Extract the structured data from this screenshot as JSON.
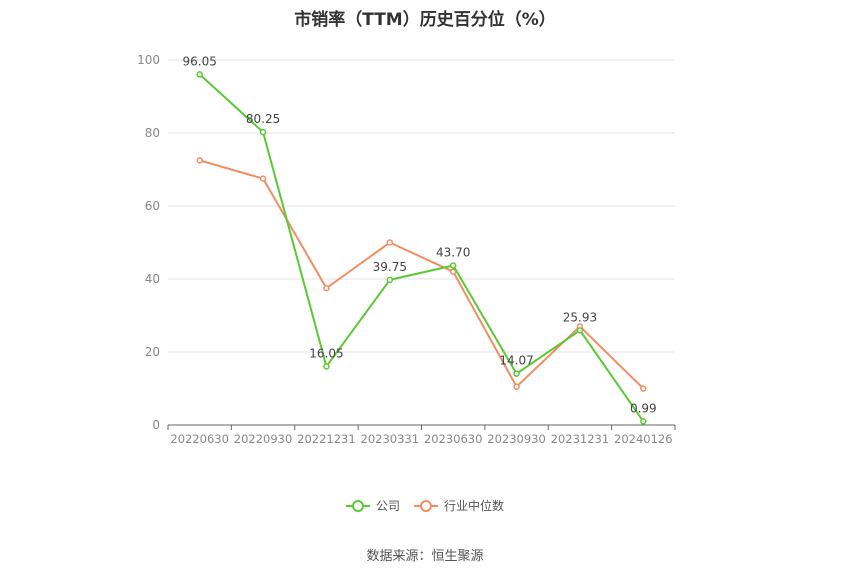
{
  "chart_data": {
    "type": "line",
    "title": "市销率（TTM）历史百分位（%）",
    "categories": [
      "20220630",
      "20220930",
      "20221231",
      "20230331",
      "20230630",
      "20230930",
      "20231231",
      "20240126"
    ],
    "ylim": [
      0,
      100
    ],
    "yticks": [
      "0",
      "20",
      "40",
      "60",
      "80",
      "100"
    ],
    "grid": true,
    "legend_position": "bottom",
    "series": [
      {
        "name": "公司",
        "color": "#5ac934",
        "values": [
          96.05,
          80.25,
          16.05,
          39.75,
          43.7,
          14.07,
          25.93,
          0.99
        ],
        "labels": [
          "96.05",
          "80.25",
          "16.05",
          "39.75",
          "43.70",
          "14.07",
          "25.93",
          "0.99"
        ]
      },
      {
        "name": "行业中位数",
        "color": "#f08d62",
        "values": [
          72.5,
          67.5,
          37.5,
          50.0,
          42.0,
          10.5,
          27.0,
          10.0
        ]
      }
    ]
  },
  "source": "数据来源：恒生聚源"
}
